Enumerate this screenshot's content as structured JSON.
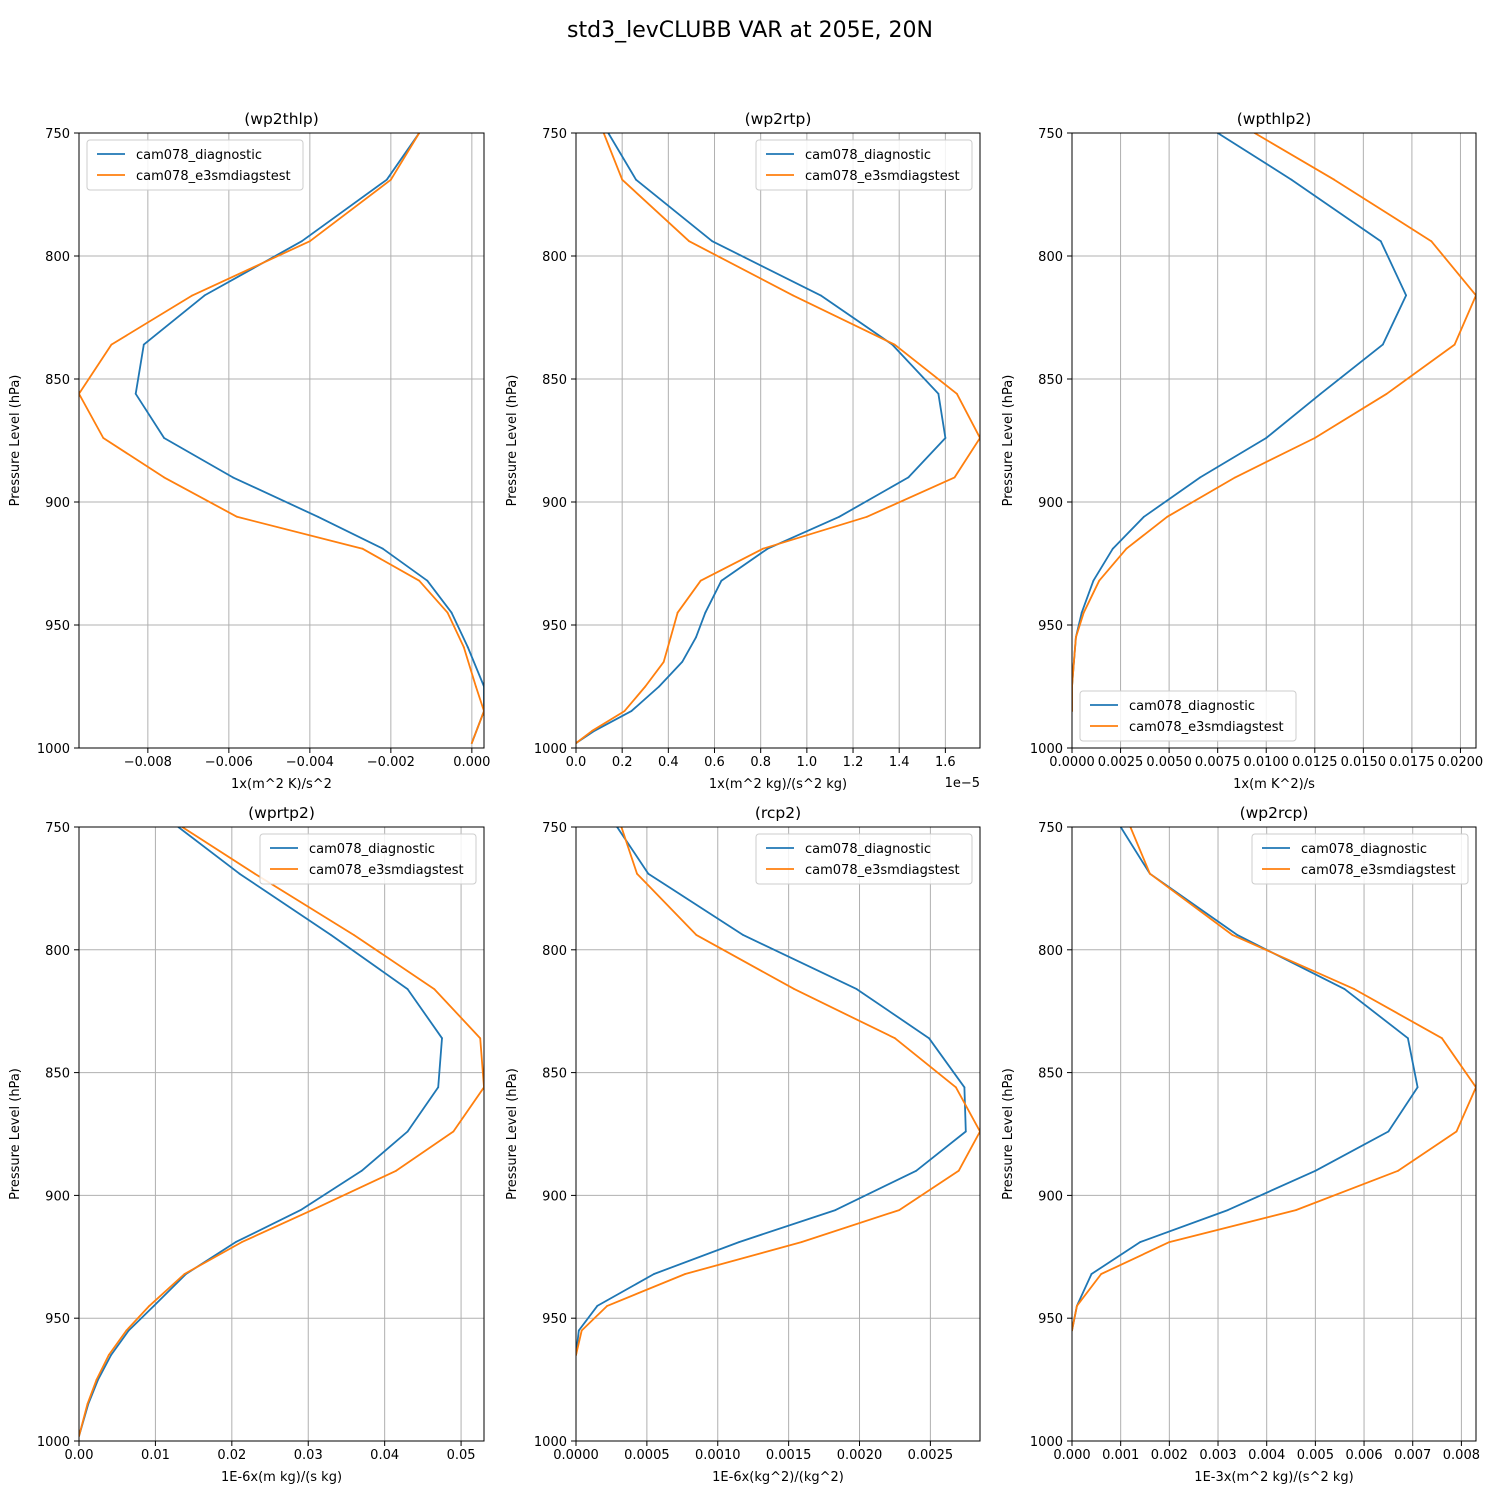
{
  "figure": {
    "suptitle": "std3_levCLUBB VAR at 205E, 20N"
  },
  "colors": {
    "diagnostic": "#1f77b4",
    "e3smdiagstest": "#ff7f0e",
    "grid": "#b0b0b0"
  },
  "chart_data": [
    {
      "type": "line",
      "title": "(wp2thlp)",
      "xlabel": "1x(m^2 K)/s^2",
      "ylabel": "Pressure Level (hPa)",
      "xlim": [
        -0.0097,
        0.0003
      ],
      "ylim": [
        1000,
        750
      ],
      "xticks": [
        -0.008,
        -0.006,
        -0.004,
        -0.002,
        0.0
      ],
      "xtick_labels": [
        "−0.008",
        "−0.006",
        "−0.004",
        "−0.002",
        "0.000"
      ],
      "yticks": [
        750,
        800,
        850,
        900,
        950,
        1000
      ],
      "ytick_labels": [
        "750",
        "800",
        "850",
        "900",
        "950",
        "1000"
      ],
      "offset_text": "",
      "grid": true,
      "legend": "upper left",
      "series": [
        {
          "name": "cam078_diagnostic",
          "key": "diagnostic",
          "x": [
            -0.0013,
            -0.0021,
            -0.0042,
            -0.0066,
            -0.0081,
            -0.0083,
            -0.0076,
            -0.0059,
            -0.0038,
            -0.0022,
            -0.0011,
            -0.0005,
            -0.0001,
            0.0003,
            0.0003,
            0.0
          ],
          "y": [
            750,
            769,
            794,
            816,
            836,
            856,
            874,
            890,
            906,
            919,
            932,
            945,
            959,
            975,
            985,
            998
          ]
        },
        {
          "name": "cam078_e3smdiagstest",
          "key": "e3smdiagstest",
          "x": [
            -0.0013,
            -0.002,
            -0.004,
            -0.0069,
            -0.0089,
            -0.0097,
            -0.0091,
            -0.0076,
            -0.0058,
            -0.0027,
            -0.0013,
            -0.0006,
            -0.0002,
            0.0001,
            0.0003,
            0.0
          ],
          "y": [
            750,
            769,
            794,
            816,
            836,
            856,
            874,
            890,
            906,
            919,
            932,
            945,
            959,
            975,
            985,
            998
          ]
        }
      ]
    },
    {
      "type": "line",
      "title": "(wp2rtp)",
      "xlabel": "1x(m^2 kg)/(s^2 kg)",
      "ylabel": "Pressure Level (hPa)",
      "xlim": [
        0.0,
        1.75
      ],
      "ylim": [
        1000,
        750
      ],
      "xticks": [
        0.0,
        0.2,
        0.4,
        0.6,
        0.8,
        1.0,
        1.2,
        1.4,
        1.6
      ],
      "xtick_labels": [
        "0.0",
        "0.2",
        "0.4",
        "0.6",
        "0.8",
        "1.0",
        "1.2",
        "1.4",
        "1.6"
      ],
      "yticks": [
        750,
        800,
        850,
        900,
        950,
        1000
      ],
      "ytick_labels": [
        "750",
        "800",
        "850",
        "900",
        "950",
        "1000"
      ],
      "offset_text": "1e−5",
      "grid": true,
      "legend": "upper right",
      "series": [
        {
          "name": "cam078_diagnostic",
          "key": "diagnostic",
          "x": [
            0.14,
            0.26,
            0.59,
            1.06,
            1.37,
            1.57,
            1.6,
            1.44,
            1.14,
            0.83,
            0.63,
            0.56,
            0.52,
            0.46,
            0.36,
            0.24,
            0.08,
            0.0
          ],
          "y": [
            750,
            769,
            794,
            816,
            836,
            856,
            874,
            890,
            906,
            919,
            932,
            945,
            955,
            965,
            975,
            985,
            993,
            998
          ]
        },
        {
          "name": "cam078_e3smdiagstest",
          "key": "e3smdiagstest",
          "x": [
            0.12,
            0.2,
            0.49,
            0.94,
            1.38,
            1.65,
            1.75,
            1.64,
            1.26,
            0.81,
            0.54,
            0.44,
            0.41,
            0.38,
            0.3,
            0.21,
            0.07,
            0.0
          ],
          "y": [
            750,
            769,
            794,
            816,
            836,
            856,
            874,
            890,
            906,
            919,
            932,
            945,
            955,
            965,
            975,
            985,
            993,
            998
          ]
        }
      ]
    },
    {
      "type": "line",
      "title": "(wpthlp2)",
      "xlabel": "1x(m K^2)/s",
      "ylabel": "Pressure Level (hPa)",
      "xlim": [
        0.0,
        0.0208
      ],
      "ylim": [
        1000,
        750
      ],
      "xticks": [
        0.0,
        0.0025,
        0.005,
        0.0075,
        0.01,
        0.0125,
        0.015,
        0.0175,
        0.02
      ],
      "xtick_labels": [
        "0.0000",
        "0.0025",
        "0.0050",
        "0.0075",
        "0.0100",
        "0.0125",
        "0.0150",
        "0.0175",
        "0.0200"
      ],
      "yticks": [
        750,
        800,
        850,
        900,
        950,
        1000
      ],
      "ytick_labels": [
        "750",
        "800",
        "850",
        "900",
        "950",
        "1000"
      ],
      "offset_text": "",
      "grid": true,
      "legend": "lower left",
      "series": [
        {
          "name": "cam078_diagnostic",
          "key": "diagnostic",
          "x": [
            0.0075,
            0.0113,
            0.0159,
            0.0172,
            0.016,
            0.0128,
            0.01,
            0.0066,
            0.0037,
            0.0021,
            0.0011,
            0.0005,
            0.0002,
            0.0001,
            0.0,
            0.0
          ],
          "y": [
            750,
            769,
            794,
            816,
            836,
            856,
            874,
            890,
            906,
            919,
            932,
            945,
            955,
            965,
            975,
            985
          ]
        },
        {
          "name": "cam078_e3smdiagstest",
          "key": "e3smdiagstest",
          "x": [
            0.0094,
            0.0135,
            0.0185,
            0.0208,
            0.0197,
            0.0162,
            0.0125,
            0.0084,
            0.0049,
            0.0028,
            0.0014,
            0.0006,
            0.0002,
            0.0001,
            0.0,
            0.0
          ],
          "y": [
            750,
            769,
            794,
            816,
            836,
            856,
            874,
            890,
            906,
            919,
            932,
            945,
            955,
            965,
            975,
            985
          ]
        }
      ]
    },
    {
      "type": "line",
      "title": "(wprtp2)",
      "xlabel": "1E-6x(m kg)/(s kg)",
      "ylabel": "Pressure Level (hPa)",
      "xlim": [
        0.0,
        0.053
      ],
      "ylim": [
        1000,
        750
      ],
      "xticks": [
        0.0,
        0.01,
        0.02,
        0.03,
        0.04,
        0.05
      ],
      "xtick_labels": [
        "0.00",
        "0.01",
        "0.02",
        "0.03",
        "0.04",
        "0.05"
      ],
      "yticks": [
        750,
        800,
        850,
        900,
        950,
        1000
      ],
      "ytick_labels": [
        "750",
        "800",
        "850",
        "900",
        "950",
        "1000"
      ],
      "offset_text": "",
      "grid": true,
      "legend": "upper right",
      "series": [
        {
          "name": "cam078_diagnostic",
          "key": "diagnostic",
          "x": [
            0.013,
            0.021,
            0.033,
            0.043,
            0.0475,
            0.047,
            0.043,
            0.037,
            0.029,
            0.0205,
            0.014,
            0.0098,
            0.0065,
            0.0042,
            0.0025,
            0.0012,
            0.0
          ],
          "y": [
            750,
            769,
            794,
            816,
            836,
            856,
            874,
            890,
            906,
            919,
            932,
            945,
            955,
            965,
            975,
            985,
            998
          ]
        },
        {
          "name": "cam078_e3smdiagstest",
          "key": "e3smdiagstest",
          "x": [
            0.0135,
            0.023,
            0.036,
            0.0465,
            0.0525,
            0.053,
            0.049,
            0.0415,
            0.0305,
            0.0213,
            0.0138,
            0.0092,
            0.0062,
            0.0039,
            0.0023,
            0.0011,
            0.0
          ],
          "y": [
            750,
            769,
            794,
            816,
            836,
            856,
            874,
            890,
            906,
            919,
            932,
            945,
            955,
            965,
            975,
            985,
            998
          ]
        }
      ]
    },
    {
      "type": "line",
      "title": "(rcp2)",
      "xlabel": "1E-6x(kg^2)/(kg^2)",
      "ylabel": "Pressure Level (hPa)",
      "xlim": [
        0.0,
        0.00285
      ],
      "ylim": [
        1000,
        750
      ],
      "xticks": [
        0.0,
        0.0005,
        0.001,
        0.0015,
        0.002,
        0.0025
      ],
      "xtick_labels": [
        "0.0000",
        "0.0005",
        "0.0010",
        "0.0015",
        "0.0020",
        "0.0025"
      ],
      "yticks": [
        750,
        800,
        850,
        900,
        950,
        1000
      ],
      "ytick_labels": [
        "750",
        "800",
        "850",
        "900",
        "950",
        "1000"
      ],
      "offset_text": "",
      "grid": true,
      "legend": "upper right",
      "series": [
        {
          "name": "cam078_diagnostic",
          "key": "diagnostic",
          "x": [
            0.00029,
            0.00051,
            0.00118,
            0.00198,
            0.00249,
            0.00274,
            0.00275,
            0.0024,
            0.00183,
            0.00115,
            0.00055,
            0.00015,
            2e-05,
            0.0
          ],
          "y": [
            750,
            769,
            794,
            816,
            836,
            856,
            874,
            890,
            906,
            919,
            932,
            945,
            955,
            965
          ]
        },
        {
          "name": "cam078_e3smdiagstest",
          "key": "e3smdiagstest",
          "x": [
            0.00032,
            0.00043,
            0.00085,
            0.00154,
            0.00225,
            0.00268,
            0.00285,
            0.0027,
            0.00228,
            0.00159,
            0.00077,
            0.00022,
            4e-05,
            0.0
          ],
          "y": [
            750,
            769,
            794,
            816,
            836,
            856,
            874,
            890,
            906,
            919,
            932,
            945,
            955,
            965
          ]
        }
      ]
    },
    {
      "type": "line",
      "title": "(wp2rcp)",
      "xlabel": "1E-3x(m^2 kg)/(s^2 kg)",
      "ylabel": "Pressure Level (hPa)",
      "xlim": [
        0.0,
        0.0083
      ],
      "ylim": [
        1000,
        750
      ],
      "xticks": [
        0.0,
        0.001,
        0.002,
        0.003,
        0.004,
        0.005,
        0.006,
        0.007,
        0.008
      ],
      "xtick_labels": [
        "0.000",
        "0.001",
        "0.002",
        "0.003",
        "0.004",
        "0.005",
        "0.006",
        "0.007",
        "0.008"
      ],
      "yticks": [
        750,
        800,
        850,
        900,
        950,
        1000
      ],
      "ytick_labels": [
        "750",
        "800",
        "850",
        "900",
        "950",
        "1000"
      ],
      "offset_text": "",
      "grid": true,
      "legend": "upper right",
      "series": [
        {
          "name": "cam078_diagnostic",
          "key": "diagnostic",
          "x": [
            0.001,
            0.0016,
            0.0034,
            0.0056,
            0.0069,
            0.0071,
            0.0065,
            0.005,
            0.0032,
            0.0014,
            0.0004,
            0.0001,
            0.0
          ],
          "y": [
            750,
            769,
            794,
            816,
            836,
            856,
            874,
            890,
            906,
            919,
            932,
            945,
            955
          ]
        },
        {
          "name": "cam078_e3smdiagstest",
          "key": "e3smdiagstest",
          "x": [
            0.0012,
            0.0016,
            0.0033,
            0.0058,
            0.0076,
            0.0083,
            0.0079,
            0.0067,
            0.0046,
            0.002,
            0.0006,
            0.0001,
            0.0
          ],
          "y": [
            750,
            769,
            794,
            816,
            836,
            856,
            874,
            890,
            906,
            919,
            932,
            945,
            955
          ]
        }
      ]
    }
  ]
}
